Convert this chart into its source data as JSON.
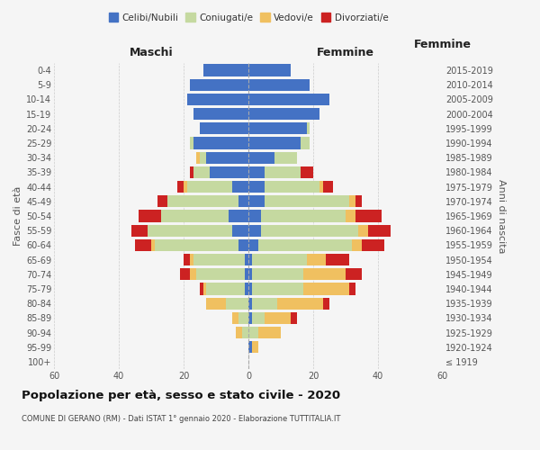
{
  "age_groups": [
    "100+",
    "95-99",
    "90-94",
    "85-89",
    "80-84",
    "75-79",
    "70-74",
    "65-69",
    "60-64",
    "55-59",
    "50-54",
    "45-49",
    "40-44",
    "35-39",
    "30-34",
    "25-29",
    "20-24",
    "15-19",
    "10-14",
    "5-9",
    "0-4"
  ],
  "birth_years": [
    "≤ 1919",
    "1920-1924",
    "1925-1929",
    "1930-1934",
    "1935-1939",
    "1940-1944",
    "1945-1949",
    "1950-1954",
    "1955-1959",
    "1960-1964",
    "1965-1969",
    "1970-1974",
    "1975-1979",
    "1980-1984",
    "1985-1989",
    "1990-1994",
    "1995-1999",
    "2000-2004",
    "2005-2009",
    "2010-2014",
    "2015-2019"
  ],
  "male": {
    "celibi": [
      0,
      0,
      0,
      0,
      0,
      1,
      1,
      1,
      3,
      5,
      6,
      3,
      5,
      12,
      13,
      17,
      15,
      17,
      19,
      18,
      14
    ],
    "coniugati": [
      0,
      0,
      2,
      3,
      7,
      12,
      15,
      16,
      26,
      26,
      21,
      22,
      14,
      5,
      2,
      1,
      0,
      0,
      0,
      0,
      0
    ],
    "vedovi": [
      0,
      0,
      2,
      2,
      6,
      1,
      2,
      1,
      1,
      0,
      0,
      0,
      1,
      0,
      1,
      0,
      0,
      0,
      0,
      0,
      0
    ],
    "divorziati": [
      0,
      0,
      0,
      0,
      0,
      1,
      3,
      2,
      5,
      5,
      7,
      3,
      2,
      1,
      0,
      0,
      0,
      0,
      0,
      0,
      0
    ]
  },
  "female": {
    "nubili": [
      0,
      1,
      0,
      1,
      1,
      1,
      1,
      1,
      3,
      4,
      4,
      5,
      5,
      5,
      8,
      16,
      18,
      22,
      25,
      19,
      13
    ],
    "coniugate": [
      0,
      0,
      3,
      4,
      8,
      16,
      16,
      17,
      29,
      30,
      26,
      26,
      17,
      11,
      7,
      3,
      1,
      0,
      0,
      0,
      0
    ],
    "vedove": [
      0,
      2,
      7,
      8,
      14,
      14,
      13,
      6,
      3,
      3,
      3,
      2,
      1,
      0,
      0,
      0,
      0,
      0,
      0,
      0,
      0
    ],
    "divorziate": [
      0,
      0,
      0,
      2,
      2,
      2,
      5,
      7,
      7,
      7,
      8,
      2,
      3,
      4,
      0,
      0,
      0,
      0,
      0,
      0,
      0
    ]
  },
  "colors": {
    "celibi": "#4472c4",
    "coniugati": "#c5d9a0",
    "vedovi": "#f0c060",
    "divorziati": "#cc2222"
  },
  "title": "Popolazione per età, sesso e stato civile - 2020",
  "subtitle": "COMUNE DI GERANO (RM) - Dati ISTAT 1° gennaio 2020 - Elaborazione TUTTITALIA.IT",
  "xlabel_left": "Maschi",
  "xlabel_right": "Femmine",
  "ylabel_left": "Fasce di età",
  "ylabel_right": "Anni di nascita",
  "xlim": 60,
  "legend_labels": [
    "Celibi/Nubili",
    "Coniugati/e",
    "Vedovi/e",
    "Divorziati/e"
  ],
  "bg_color": "#f5f5f5"
}
